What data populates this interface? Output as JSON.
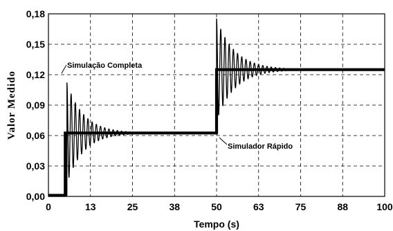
{
  "chart_data": {
    "type": "line",
    "title": "",
    "xlabel": "Tempo (s)",
    "ylabel": "Valor Medido",
    "xlim": [
      0,
      100
    ],
    "ylim": [
      0,
      0.18
    ],
    "grid": true,
    "x_tick_labels": [
      "0",
      "13",
      "25",
      "38",
      "50",
      "63",
      "75",
      "88",
      "100"
    ],
    "y_tick_labels": [
      "0,00",
      "0,03",
      "0,06",
      "0,09",
      "0,12",
      "0,15",
      "0,18"
    ],
    "annotations": [
      "Simulação Completa",
      "Simulador Rápido"
    ],
    "series": [
      {
        "name": "Simulação Completa",
        "model": "step response with damped oscillation",
        "steps": [
          {
            "t": 0,
            "value": 0.001
          },
          {
            "t": 5.5,
            "value": 0.0625,
            "first_peak": 0.112,
            "period": 1.25,
            "decay_time": 5.0
          },
          {
            "t": 50,
            "value": 0.125,
            "first_peak": 0.175,
            "period": 1.25,
            "decay_time": 5.5
          }
        ]
      },
      {
        "name": "Simulador Rápido",
        "x": [
          0,
          5,
          5,
          50,
          50,
          100
        ],
        "y": [
          0.001,
          0.001,
          0.0625,
          0.0625,
          0.125,
          0.125
        ]
      }
    ]
  }
}
